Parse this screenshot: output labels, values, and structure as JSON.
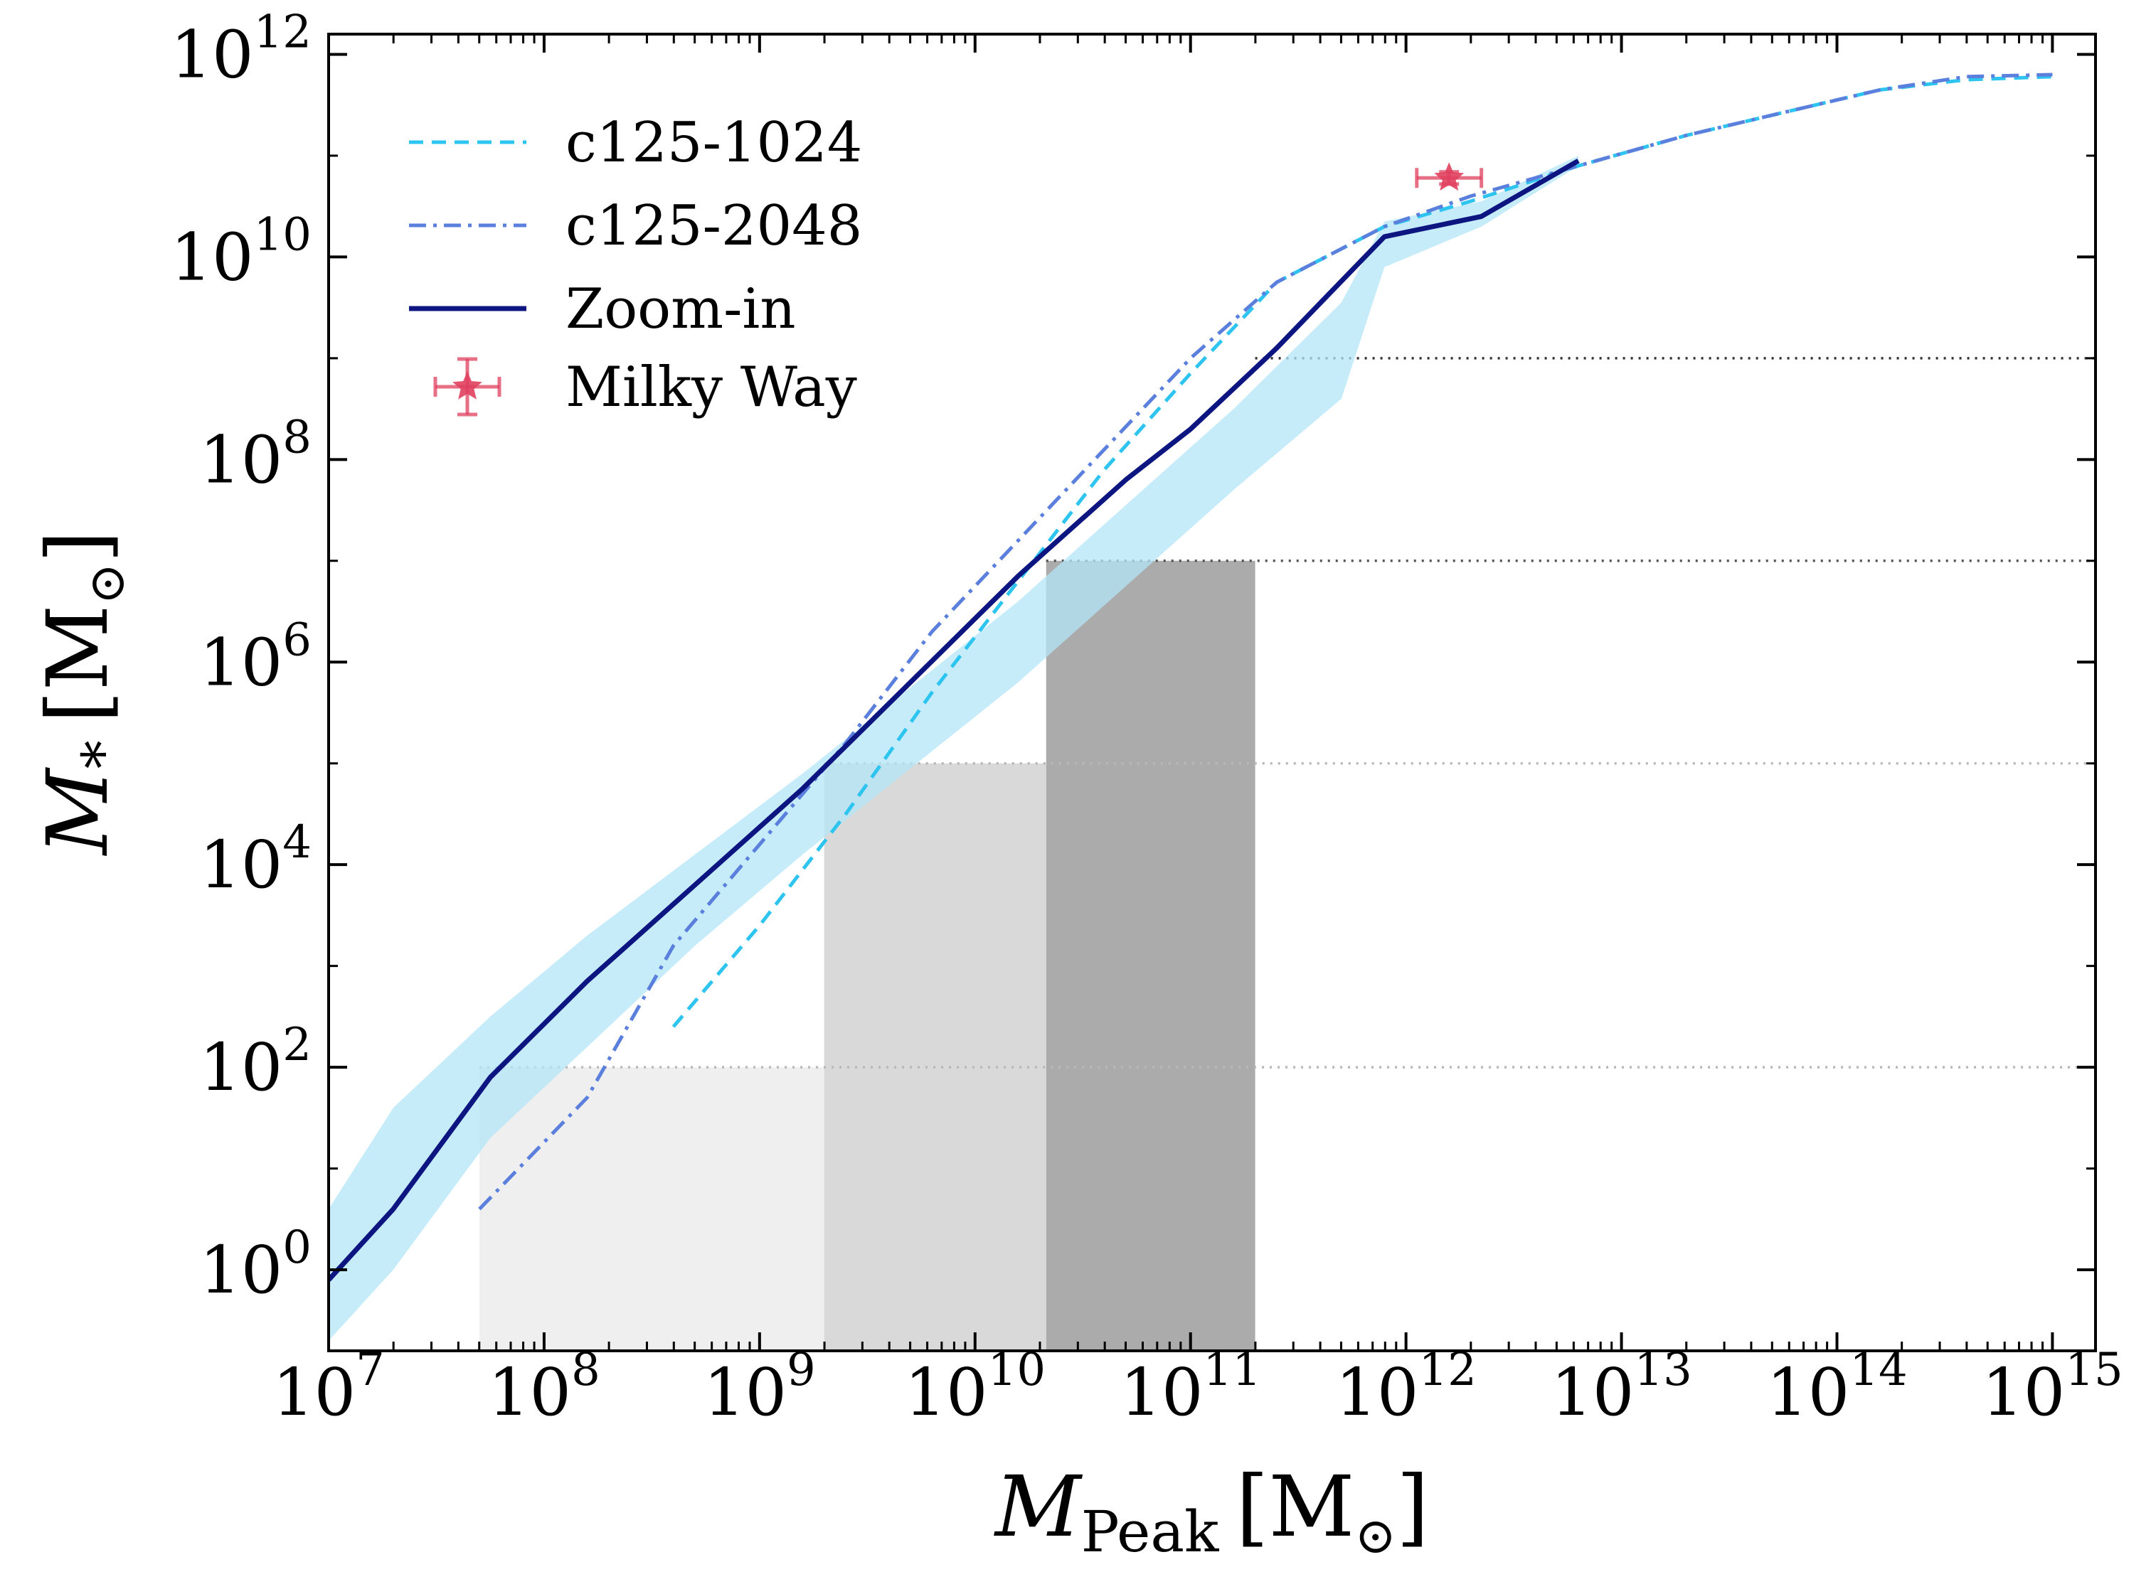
{
  "chart_data": {
    "type": "line",
    "xscale": "log",
    "yscale": "log",
    "xlim_log10": [
      7,
      15.2
    ],
    "ylim_log10": [
      -0.8,
      12.2
    ],
    "x_ticks_log10": [
      7,
      8,
      9,
      10,
      11,
      12,
      13,
      14,
      15
    ],
    "y_ticks_log10": [
      0,
      2,
      4,
      6,
      8,
      10,
      12
    ],
    "tick_base": "10",
    "xlabel": {
      "symbol": "M",
      "subscript": "Peak",
      "unit": "[M",
      "unit_close": "]"
    },
    "ylabel": {
      "symbol": "M",
      "subscript": "*",
      "unit": "[M",
      "unit_close": "]"
    },
    "grid": false,
    "legend_placement": "upper-left",
    "colors": {
      "c125_1024": "#2ec4f0",
      "c125_2048": "#5b7fdc",
      "zoom_in": "#0d1580",
      "milky_way": "#e0405e",
      "band": "#b3e6f8",
      "shade_light": "#efefef",
      "shade_mid": "#d9d9d9",
      "shade_dark": "#ababab"
    },
    "shaded_regions": [
      {
        "x_log10": [
          7.7,
          9.3
        ],
        "y_top_log10": 2,
        "tone": "light"
      },
      {
        "x_log10": [
          9.3,
          10.33
        ],
        "y_top_log10": 5,
        "tone": "mid"
      },
      {
        "x_log10": [
          10.33,
          11.3
        ],
        "y_top_log10": 7,
        "tone": "dark"
      }
    ],
    "reference_lines": [
      {
        "y_log10": 2,
        "x_start_log10": 7.7,
        "shade": "#b8b8b8"
      },
      {
        "y_log10": 5,
        "x_start_log10": 9.3,
        "shade": "#b8b8b8"
      },
      {
        "y_log10": 7,
        "x_start_log10": 10.33,
        "shade": "#555555"
      },
      {
        "y_log10": 9,
        "x_start_log10": 11.3,
        "shade": "#333333"
      }
    ],
    "band": {
      "x_log10": [
        7.0,
        7.3,
        7.75,
        8.2,
        8.7,
        9.2,
        9.7,
        10.2,
        10.7,
        11.2,
        11.7,
        11.9,
        12.35,
        12.8
      ],
      "upper_log10": [
        0.6,
        1.6,
        2.5,
        3.3,
        4.1,
        4.9,
        5.75,
        6.6,
        7.55,
        8.5,
        9.55,
        10.35,
        10.55,
        11.0
      ],
      "lower_log10": [
        -0.7,
        0.0,
        1.3,
        2.2,
        3.2,
        4.1,
        4.95,
        5.8,
        6.75,
        7.7,
        8.6,
        9.9,
        10.3,
        10.9
      ]
    },
    "series": [
      {
        "name": "c125-1024",
        "style": "dashed",
        "x_log10": [
          8.6,
          9.0,
          9.4,
          9.8,
          10.2,
          10.6,
          11.0,
          11.4,
          11.9,
          12.3,
          12.8,
          13.3,
          13.8,
          14.2,
          14.6,
          15.0
        ],
        "y_log10": [
          2.4,
          3.4,
          4.5,
          5.7,
          6.8,
          7.9,
          8.85,
          9.75,
          10.3,
          10.55,
          10.9,
          11.2,
          11.45,
          11.65,
          11.75,
          11.78
        ]
      },
      {
        "name": "c125-2048",
        "style": "dashdot",
        "x_log10": [
          7.7,
          8.2,
          8.6,
          9.0,
          9.4,
          9.8,
          10.2,
          10.6,
          11.0,
          11.4,
          11.9,
          12.3,
          12.8,
          13.3,
          13.8,
          14.2,
          14.6,
          15.0
        ],
        "y_log10": [
          0.6,
          1.7,
          3.2,
          4.2,
          5.2,
          6.3,
          7.2,
          8.1,
          9.0,
          9.75,
          10.3,
          10.6,
          10.9,
          11.2,
          11.45,
          11.65,
          11.78,
          11.8
        ]
      },
      {
        "name": "Zoom-in",
        "style": "solid",
        "x_log10": [
          7.0,
          7.3,
          7.75,
          8.2,
          8.7,
          9.2,
          9.7,
          10.2,
          10.7,
          11.0,
          11.4,
          11.9,
          12.35,
          12.8
        ],
        "y_log10": [
          -0.1,
          0.6,
          1.9,
          2.85,
          3.8,
          4.75,
          5.8,
          6.85,
          7.8,
          8.3,
          9.1,
          10.2,
          10.4,
          10.95
        ]
      }
    ],
    "milky_way": {
      "name": "Milky Way",
      "x_log10": 12.2,
      "y_log10": 10.78,
      "x_err_log10": [
        12.05,
        12.35
      ],
      "y_err_log10": [
        10.72,
        10.84
      ]
    }
  }
}
